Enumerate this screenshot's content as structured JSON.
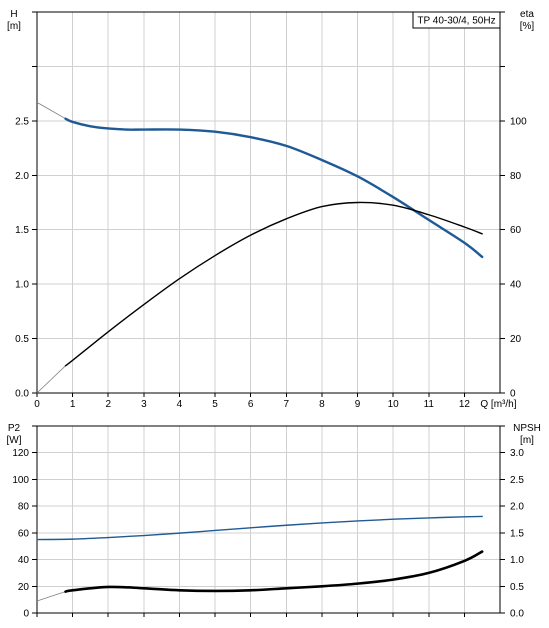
{
  "legend": "TP 40-30/4, 50Hz",
  "colors": {
    "pump_curve": "#1f5a96",
    "efficiency_curve": "#000000",
    "grid": "#d0d0d0",
    "frame": "#000000",
    "extrapolation": "#808080"
  },
  "chart_data": [
    {
      "type": "line",
      "title": "",
      "legend_text": "TP 40-30/4, 50Hz",
      "legend_position": "top-right",
      "grid": true,
      "xlabel": "Q [m³/h]",
      "xlim": [
        0,
        13
      ],
      "x_ticks": [
        0,
        1,
        2,
        3,
        4,
        5,
        6,
        7,
        8,
        9,
        10,
        11,
        12
      ],
      "ylabel_left_lines": [
        "H",
        "[m]"
      ],
      "ylim_left": [
        0,
        3.5
      ],
      "y_ticks_left": [
        "0.0",
        "0.5",
        "1.0",
        "1.5",
        "2.0",
        "2.5"
      ],
      "ylabel_right_lines": [
        "eta",
        "[%]"
      ],
      "ylim_right": [
        0,
        140
      ],
      "y_ticks_right": [
        "0",
        "20",
        "40",
        "60",
        "80",
        "100"
      ],
      "series": [
        {
          "axis": "left",
          "x": [
            0,
            0.8,
            1,
            1.5,
            2,
            2.5,
            3,
            4,
            5,
            6,
            7,
            8,
            9,
            10,
            11,
            12,
            12.5
          ],
          "values": [
            2.67,
            2.52,
            2.49,
            2.45,
            2.43,
            2.42,
            2.42,
            2.42,
            2.4,
            2.35,
            2.27,
            2.14,
            1.99,
            1.8,
            1.59,
            1.38,
            1.25
          ],
          "visible_from_x": 0.8
        },
        {
          "axis": "right",
          "x": [
            0,
            0.8,
            1,
            2,
            3,
            4,
            5,
            6,
            7,
            8,
            9,
            10,
            11,
            12,
            12.5
          ],
          "values": [
            0,
            10,
            12,
            22.5,
            32.5,
            42,
            50.5,
            58,
            64,
            68.5,
            70,
            69,
            65.5,
            61,
            58.5
          ],
          "visible_from_x": 0.8
        }
      ]
    },
    {
      "type": "line",
      "title": "",
      "grid": true,
      "xlim": [
        0,
        13
      ],
      "x_ticks": [
        0,
        1,
        2,
        3,
        4,
        5,
        6,
        7,
        8,
        9,
        10,
        11,
        12
      ],
      "ylabel_left_lines": [
        "P2",
        "[W]"
      ],
      "ylim_left": [
        0,
        140
      ],
      "y_ticks_left": [
        "0",
        "20",
        "40",
        "60",
        "80",
        "100",
        "120"
      ],
      "ylabel_right_lines": [
        "NPSH",
        "[m]"
      ],
      "ylim_right": [
        0,
        3.5
      ],
      "y_ticks_right": [
        "0.0",
        "0.5",
        "1.0",
        "1.5",
        "2.0",
        "2.5",
        "3.0"
      ],
      "series": [
        {
          "axis": "left",
          "x": [
            0,
            1,
            2,
            3,
            4,
            5,
            6,
            7,
            8,
            9,
            10,
            11,
            12,
            12.5
          ],
          "values": [
            55,
            55.3,
            56.5,
            58,
            59.8,
            61.8,
            63.8,
            65.7,
            67.4,
            68.9,
            70.2,
            71.2,
            72,
            72.3
          ]
        },
        {
          "axis": "left",
          "x": [
            0,
            0.8,
            1,
            2,
            3,
            4,
            5,
            6,
            7,
            8,
            9,
            10,
            11,
            12,
            12.5
          ],
          "values": [
            9,
            16,
            17,
            19.5,
            18.5,
            17,
            16.5,
            17,
            18.5,
            20,
            22,
            25,
            30,
            39,
            46
          ],
          "visible_from_x": 0.8
        }
      ]
    }
  ]
}
